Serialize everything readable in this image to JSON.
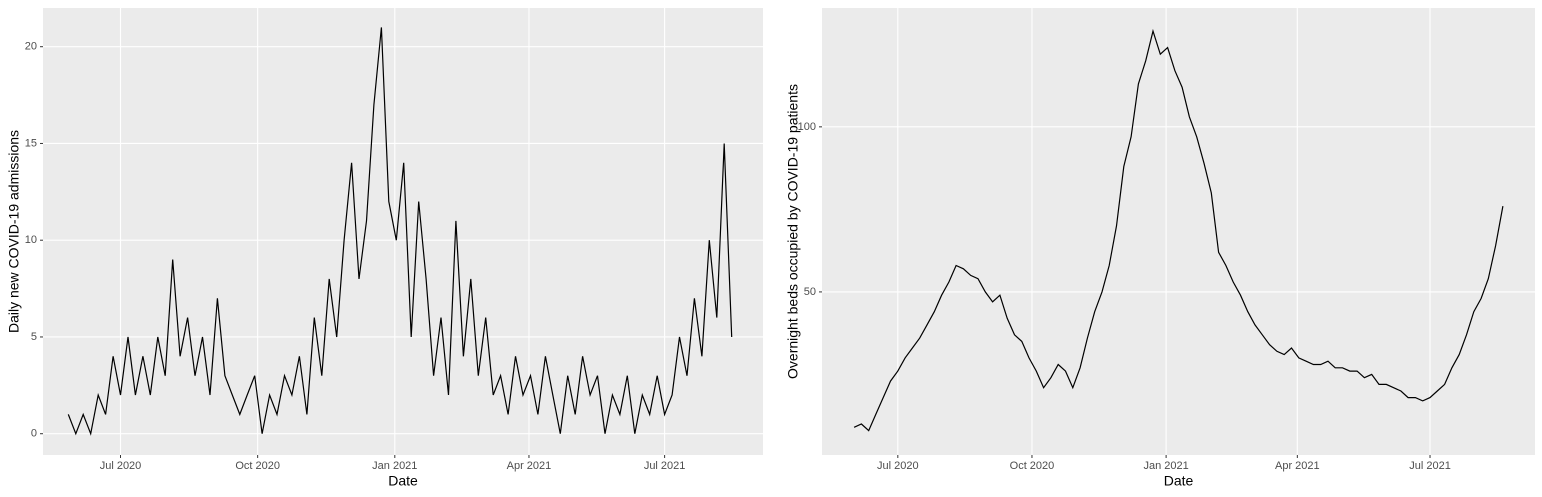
{
  "chart_data": [
    {
      "type": "line",
      "x_label": "Date",
      "y_label": "Daily new COVID-19 admissions",
      "xlim": [
        -52,
        431
      ],
      "ylim": [
        -1.1,
        22
      ],
      "xticks": [
        {
          "value": 0,
          "label": "Jul 2020"
        },
        {
          "value": 92,
          "label": "Oct 2020"
        },
        {
          "value": 184,
          "label": "Jan 2021"
        },
        {
          "value": 274,
          "label": "Apr 2021"
        },
        {
          "value": 365,
          "label": "Jul 2021"
        }
      ],
      "yticks": [
        0,
        5,
        10,
        15,
        20
      ],
      "grid": true,
      "x": [
        -35,
        -30,
        -25,
        -20,
        -15,
        -10,
        -5,
        0,
        5,
        10,
        15,
        20,
        25,
        30,
        35,
        40,
        45,
        50,
        55,
        60,
        65,
        70,
        75,
        80,
        85,
        90,
        95,
        100,
        105,
        110,
        115,
        120,
        125,
        130,
        135,
        140,
        145,
        150,
        155,
        160,
        165,
        170,
        175,
        180,
        185,
        190,
        195,
        200,
        205,
        210,
        215,
        220,
        225,
        230,
        235,
        240,
        245,
        250,
        255,
        260,
        265,
        270,
        275,
        280,
        285,
        290,
        295,
        300,
        305,
        310,
        315,
        320,
        325,
        330,
        335,
        340,
        345,
        350,
        355,
        360,
        365,
        370,
        375,
        380,
        385,
        390,
        395,
        400,
        405,
        410
      ],
      "series": [
        {
          "color": "#000000",
          "values": [
            1,
            0,
            1,
            0,
            2,
            1,
            4,
            2,
            5,
            2,
            4,
            2,
            5,
            3,
            9,
            4,
            6,
            3,
            5,
            2,
            7,
            3,
            2,
            1,
            2,
            3,
            0,
            2,
            1,
            3,
            2,
            4,
            1,
            6,
            3,
            8,
            5,
            10,
            14,
            8,
            11,
            17,
            21,
            12,
            10,
            14,
            5,
            12,
            8,
            3,
            6,
            2,
            11,
            4,
            8,
            3,
            6,
            2,
            3,
            1,
            4,
            2,
            3,
            1,
            4,
            2,
            0,
            3,
            1,
            4,
            2,
            3,
            0,
            2,
            1,
            3,
            0,
            2,
            1,
            3,
            1,
            2,
            5,
            3,
            7,
            4,
            10,
            6,
            15,
            5
          ]
        }
      ]
    },
    {
      "type": "line",
      "x_label": "Date",
      "y_label": "Overnight beds occupied by COVID-19 patients",
      "xlim": [
        -52,
        437
      ],
      "ylim": [
        0.6,
        136
      ],
      "xticks": [
        {
          "value": 0,
          "label": "Jul 2020"
        },
        {
          "value": 92,
          "label": "Oct 2020"
        },
        {
          "value": 184,
          "label": "Jan 2021"
        },
        {
          "value": 274,
          "label": "Apr 2021"
        },
        {
          "value": 365,
          "label": "Jul 2021"
        }
      ],
      "yticks": [
        50,
        100
      ],
      "grid": true,
      "x": [
        -30,
        -25,
        -20,
        -15,
        -10,
        -5,
        0,
        5,
        10,
        15,
        20,
        25,
        30,
        35,
        40,
        45,
        50,
        55,
        60,
        65,
        70,
        75,
        80,
        85,
        90,
        95,
        100,
        105,
        110,
        115,
        120,
        125,
        130,
        135,
        140,
        145,
        150,
        155,
        160,
        165,
        170,
        175,
        180,
        185,
        190,
        195,
        200,
        205,
        210,
        215,
        220,
        225,
        230,
        235,
        240,
        245,
        250,
        255,
        260,
        265,
        270,
        275,
        280,
        285,
        290,
        295,
        300,
        305,
        310,
        315,
        320,
        325,
        330,
        335,
        340,
        345,
        350,
        355,
        360,
        365,
        370,
        375,
        380,
        385,
        390,
        395,
        400,
        405,
        410,
        415
      ],
      "series": [
        {
          "color": "#000000",
          "values": [
            9,
            10,
            8,
            13,
            18,
            23,
            26,
            30,
            33,
            36,
            40,
            44,
            49,
            53,
            58,
            57,
            55,
            54,
            50,
            47,
            49,
            42,
            37,
            35,
            30,
            26,
            21,
            24,
            28,
            26,
            21,
            27,
            36,
            44,
            50,
            58,
            70,
            88,
            97,
            113,
            120,
            129,
            122,
            124,
            117,
            112,
            103,
            97,
            89,
            80,
            62,
            58,
            53,
            49,
            44,
            40,
            37,
            34,
            32,
            31,
            33,
            30,
            29,
            28,
            28,
            29,
            27,
            27,
            26,
            26,
            24,
            25,
            22,
            22,
            21,
            20,
            18,
            18,
            17,
            18,
            20,
            22,
            27,
            31,
            37,
            44,
            48,
            54,
            64,
            76
          ]
        }
      ]
    }
  ]
}
